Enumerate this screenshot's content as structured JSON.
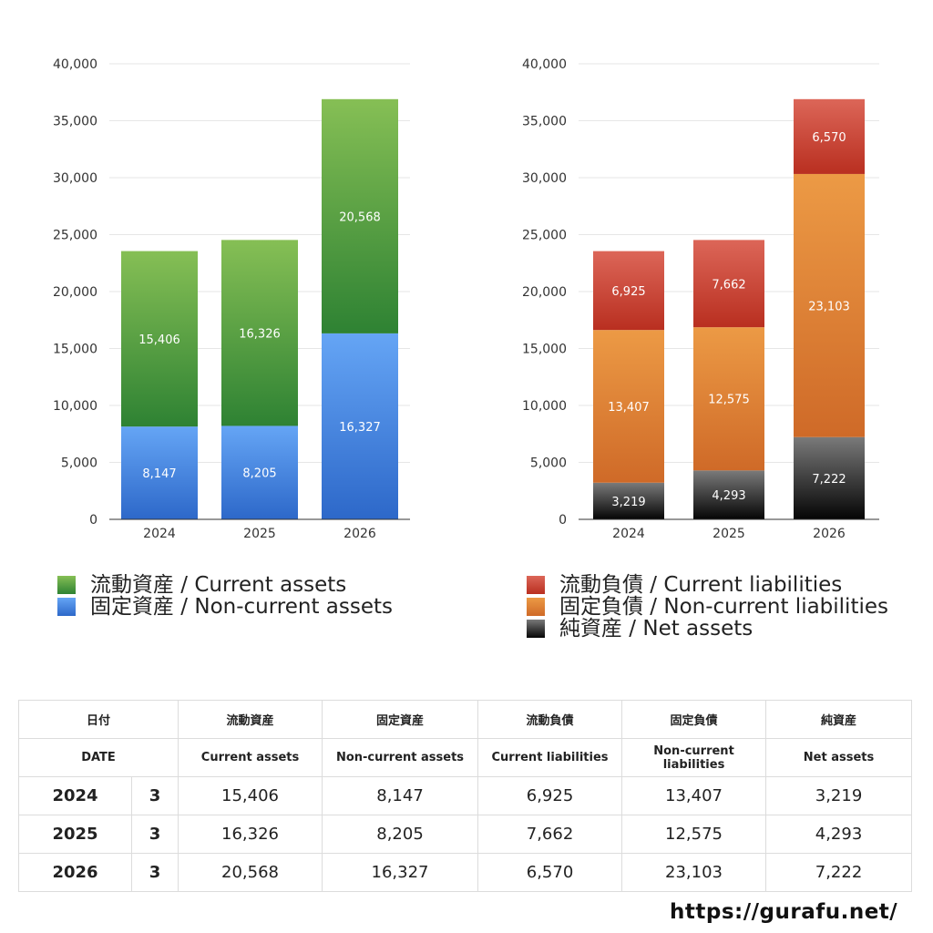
{
  "chart_data": [
    {
      "type": "bar",
      "stacked": true,
      "categories": [
        "2024",
        "2025",
        "2026"
      ],
      "y_ticks": [
        "0",
        "5,000",
        "10,000",
        "15,000",
        "20,000",
        "25,000",
        "30,000",
        "35,000",
        "40,000"
      ],
      "ylim": [
        0,
        40000
      ],
      "grid": true,
      "series": [
        {
          "name": "固定資産 / Non-current assets",
          "values": [
            8147,
            8205,
            16327
          ],
          "labels": [
            "8,147",
            "8,205",
            "16,327"
          ],
          "color_top": "#65a5f5",
          "color_bottom": "#2d68c9"
        },
        {
          "name": "流動資産 / Current assets",
          "values": [
            15406,
            16326,
            20568
          ],
          "labels": [
            "15,406",
            "16,326",
            "20,568"
          ],
          "color_top": "#86bf55",
          "color_bottom": "#2e8233"
        }
      ],
      "legend_order": [
        1,
        0
      ]
    },
    {
      "type": "bar",
      "stacked": true,
      "categories": [
        "2024",
        "2025",
        "2026"
      ],
      "y_ticks": [
        "0",
        "5,000",
        "10,000",
        "15,000",
        "20,000",
        "25,000",
        "30,000",
        "35,000",
        "40,000"
      ],
      "ylim": [
        0,
        40000
      ],
      "grid": true,
      "series": [
        {
          "name": "純資産 / Net assets",
          "values": [
            3219,
            4293,
            7222
          ],
          "labels": [
            "3,219",
            "4,293",
            "7,222"
          ],
          "color_top": "#7a7a7a",
          "color_bottom": "#050505"
        },
        {
          "name": "固定負債 / Non-current liabilities",
          "values": [
            13407,
            12575,
            23103
          ],
          "labels": [
            "13,407",
            "12,575",
            "23,103"
          ],
          "color_top": "#ec9a45",
          "color_bottom": "#cf6a28"
        },
        {
          "name": "流動負債 / Current liabilities",
          "values": [
            6925,
            7662,
            6570
          ],
          "labels": [
            "6,925",
            "7,662",
            "6,570"
          ],
          "color_top": "#dc6658",
          "color_bottom": "#b92f20"
        }
      ],
      "legend_order": [
        2,
        1,
        0
      ]
    }
  ],
  "table": {
    "header_jp": [
      "日付",
      "流動資産",
      "固定資産",
      "流動負債",
      "固定負債",
      "純資産"
    ],
    "header_en": [
      "DATE",
      "Current assets",
      "Non-current assets",
      "Current liabilities",
      "Non-current liabilities",
      "Net assets"
    ],
    "rows": [
      {
        "year": "2024",
        "month": "3",
        "values": [
          "15,406",
          "8,147",
          "6,925",
          "13,407",
          "3,219"
        ]
      },
      {
        "year": "2025",
        "month": "3",
        "values": [
          "16,326",
          "8,205",
          "7,662",
          "12,575",
          "4,293"
        ]
      },
      {
        "year": "2026",
        "month": "3",
        "values": [
          "20,568",
          "16,327",
          "6,570",
          "23,103",
          "7,222"
        ]
      }
    ]
  },
  "site_url": "https://gurafu.net/"
}
